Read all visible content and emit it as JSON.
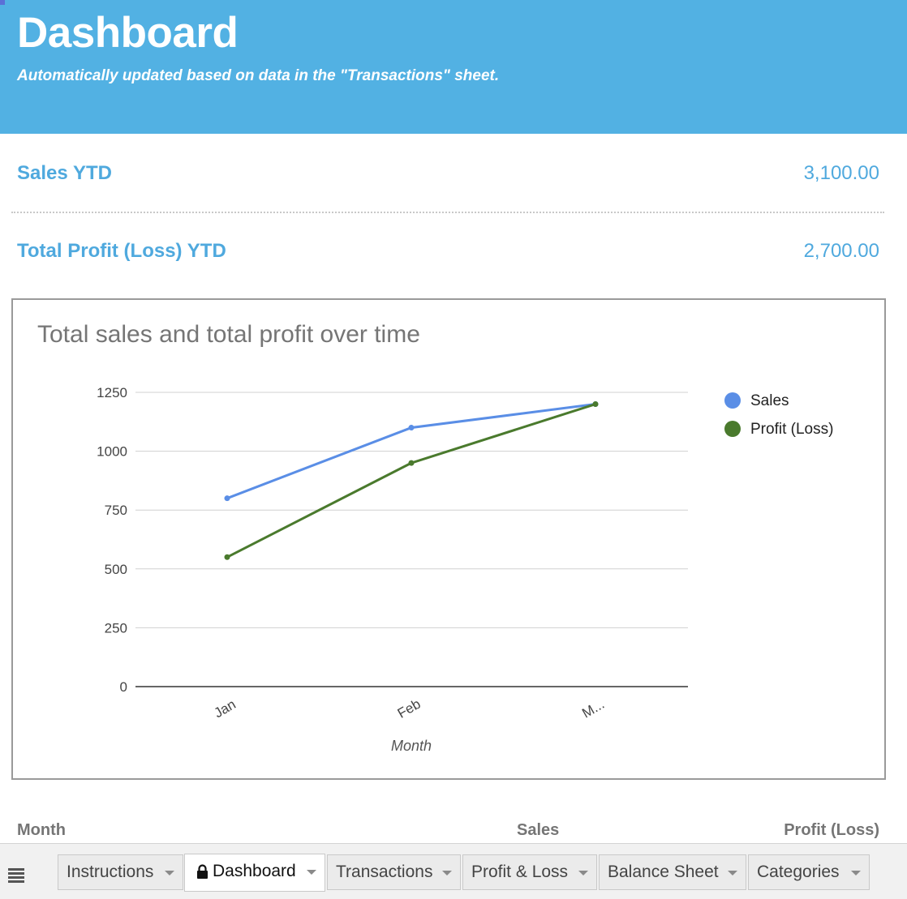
{
  "header": {
    "title": "Dashboard",
    "subtitle": "Automatically updated based on data in the \"Transactions\" sheet."
  },
  "metrics": {
    "sales_label": "Sales YTD",
    "sales_value": "3,100.00",
    "profit_label": "Total Profit (Loss) YTD",
    "profit_value": "2,700.00"
  },
  "chart_data": {
    "type": "line",
    "title": "Total sales and total profit over time",
    "xlabel": "Month",
    "ylabel": "",
    "categories": [
      "Jan",
      "Feb",
      "M..."
    ],
    "series": [
      {
        "name": "Sales",
        "values": [
          800,
          1100,
          1200
        ],
        "color": "#5a8ee6"
      },
      {
        "name": "Profit (Loss)",
        "values": [
          550,
          950,
          1200
        ],
        "color": "#4a7a2d"
      }
    ],
    "ylim": [
      0,
      1250
    ],
    "yticks": [
      0,
      250,
      500,
      750,
      1000,
      1250
    ],
    "grid": true,
    "legend": "right"
  },
  "table_headers": {
    "month": "Month",
    "sales": "Sales",
    "profit": "Profit (Loss)"
  },
  "tabs": [
    {
      "label": "Instructions",
      "active": false
    },
    {
      "label": "Dashboard",
      "active": true,
      "icon": "lock-icon"
    },
    {
      "label": "Transactions",
      "active": false
    },
    {
      "label": "Profit & Loss",
      "active": false
    },
    {
      "label": "Balance Sheet",
      "active": false
    },
    {
      "label": "Categories",
      "active": false
    }
  ],
  "colors": {
    "header_bg": "#52b1e3",
    "metric_text": "#4fa9de"
  }
}
